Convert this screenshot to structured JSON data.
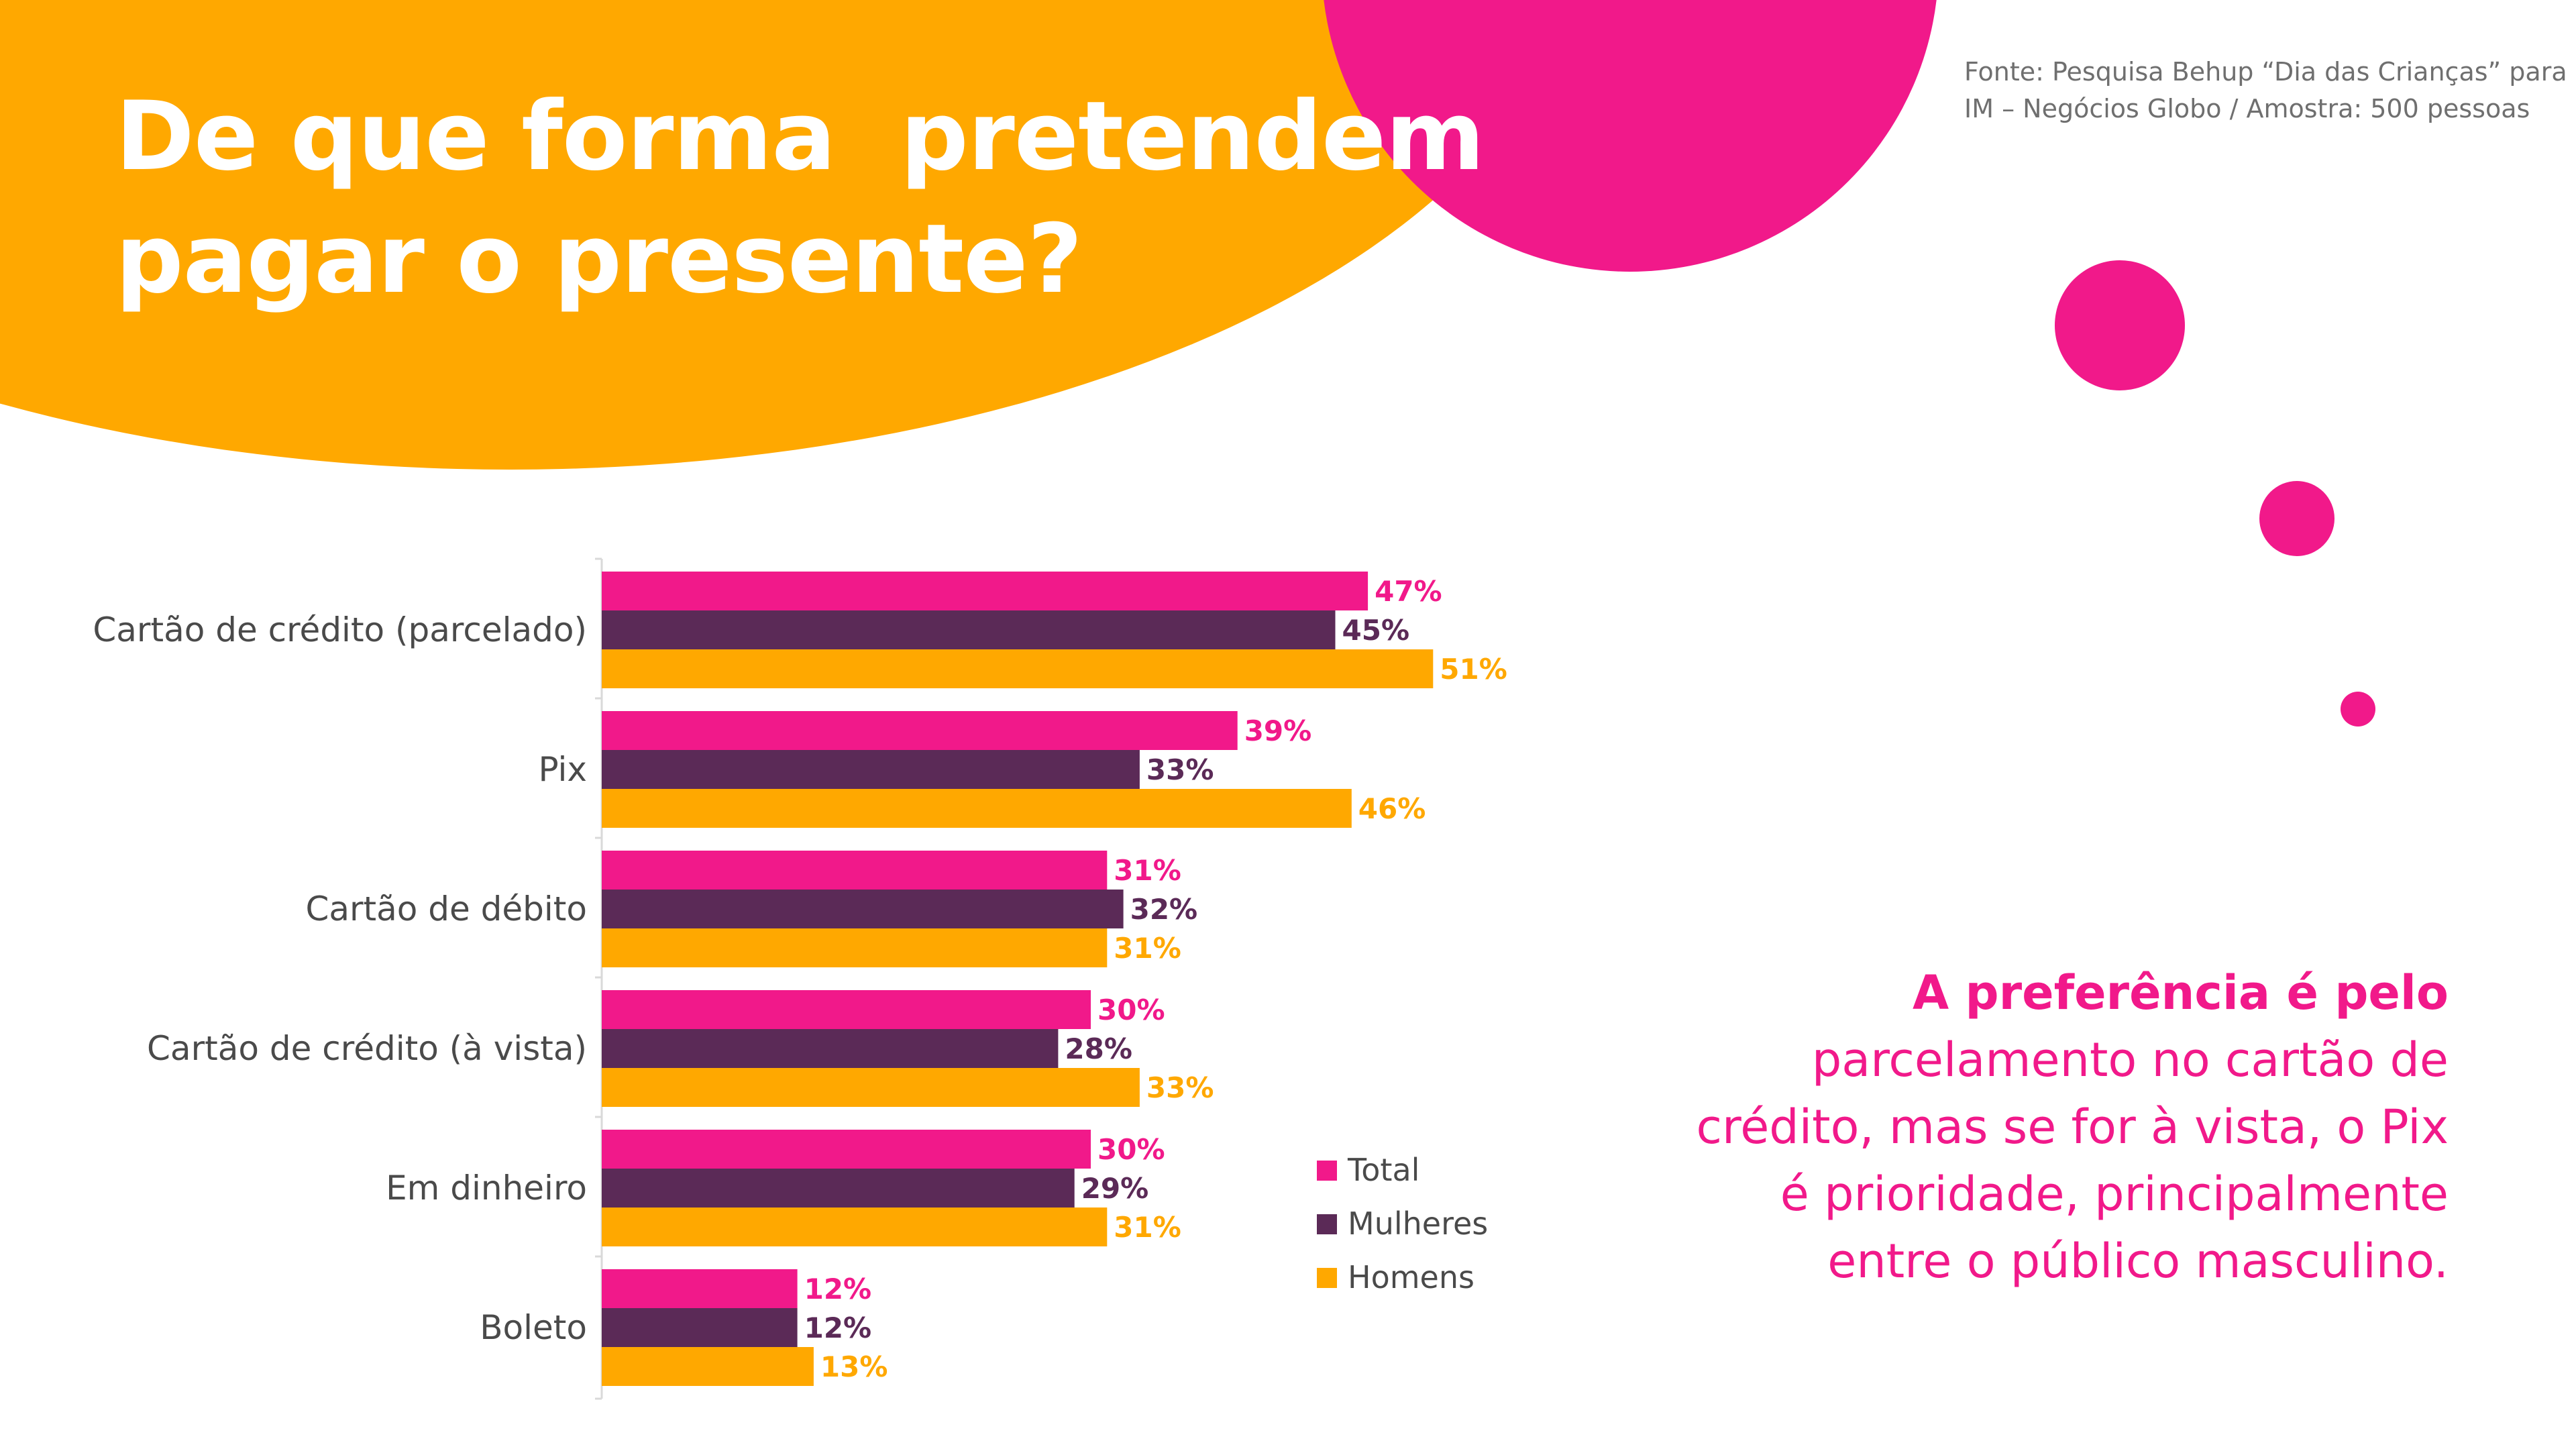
{
  "title": {
    "line1": "De que forma  pretendem",
    "line2": "pagar o presente?"
  },
  "source": {
    "line1": "Fonte: Pesquisa Behup “Dia das Crianças” para",
    "line2": "IM – Negócios Globo / Amostra: 500 pessoas"
  },
  "callout": {
    "bold": "A preferência é pelo",
    "lines": [
      "parcelamento no cartão de",
      "crédito, mas se for à vista, o Pix",
      "é prioridade, principalmente",
      "entre o público masculino."
    ]
  },
  "colors": {
    "orange": "#ffa800",
    "pink": "#f1198a",
    "purple": "#5b2a57",
    "white": "#ffffff"
  },
  "chart_data": {
    "type": "bar",
    "orientation": "horizontal",
    "categories": [
      "Cartão de crédito (parcelado)",
      "Pix",
      "Cartão de débito",
      "Cartão de crédito (à vista)",
      "Em dinheiro",
      "Boleto"
    ],
    "series": [
      {
        "name": "Total",
        "color": "#f1198a",
        "values": [
          47,
          39,
          31,
          30,
          30,
          12
        ],
        "labels": [
          "47%",
          "39%",
          "31%",
          "30%",
          "30%",
          "12%"
        ]
      },
      {
        "name": "Mulheres",
        "color": "#5b2a57",
        "values": [
          45,
          33,
          32,
          28,
          29,
          12
        ],
        "labels": [
          "45%",
          "33%",
          "32%",
          "28%",
          "29%",
          "12%"
        ]
      },
      {
        "name": "Homens",
        "color": "#ffa800",
        "values": [
          51,
          46,
          31,
          33,
          31,
          13
        ],
        "labels": [
          "51%",
          "46%",
          "31%",
          "33%",
          "31%",
          "13%"
        ]
      }
    ],
    "xlim": [
      0,
      100
    ],
    "grid": false,
    "legend": "bottom-right of plot"
  }
}
